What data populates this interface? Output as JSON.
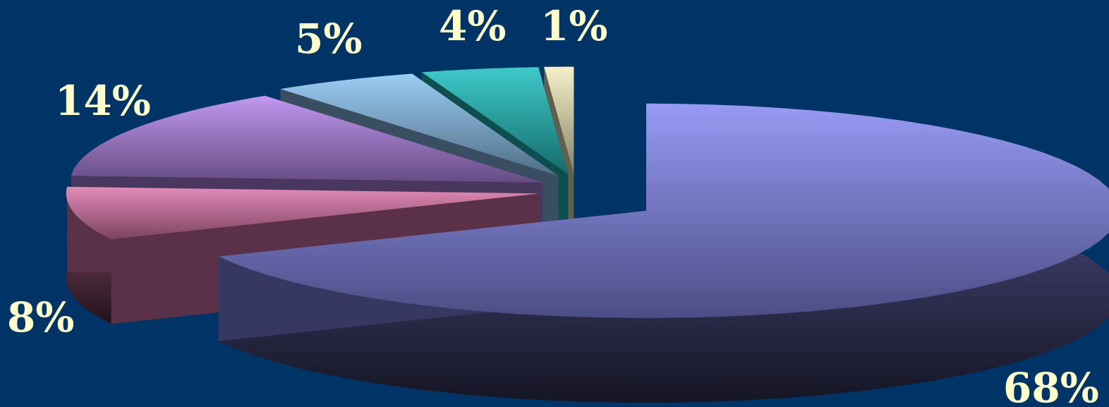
{
  "background_color": "#003366",
  "label_color": "#FFFFCC",
  "chart_data": {
    "type": "pie",
    "style": "3d-exploded",
    "slices": [
      {
        "value": 68,
        "label": "68%",
        "color": "#8A8CF2"
      },
      {
        "value": 8,
        "label": "8%",
        "color": "#E07BB0"
      },
      {
        "value": 14,
        "label": "14%",
        "color": "#B98AEE"
      },
      {
        "value": 5,
        "label": "5%",
        "color": "#8FC6F2"
      },
      {
        "value": 4,
        "label": "4%",
        "color": "#25C2C2"
      },
      {
        "value": 1,
        "label": "1%",
        "color": "#F2EFC0"
      }
    ]
  }
}
